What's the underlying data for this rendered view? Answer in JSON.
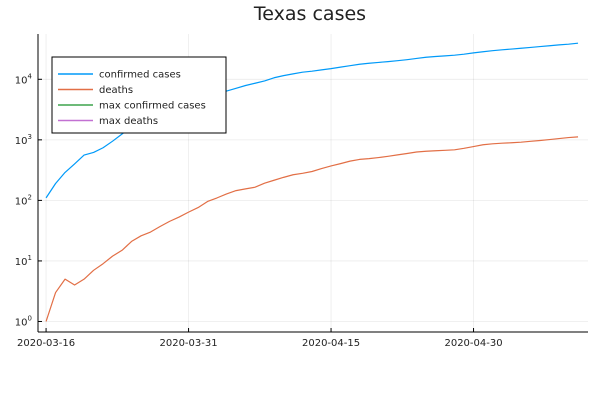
{
  "chart_data": {
    "type": "line",
    "title": "Texas cases",
    "xlabel": "",
    "ylabel": "",
    "y_scale": "log10",
    "x_ticks": [
      "2020-03-16",
      "2020-03-31",
      "2020-04-15",
      "2020-04-30"
    ],
    "y_ticks": [
      {
        "value": 1,
        "base": "10",
        "exp": "0"
      },
      {
        "value": 10,
        "base": "10",
        "exp": "1"
      },
      {
        "value": 100,
        "base": "10",
        "exp": "2"
      },
      {
        "value": 1000,
        "base": "10",
        "exp": "3"
      },
      {
        "value": 10000,
        "base": "10",
        "exp": "4"
      }
    ],
    "xlim": [
      "2020-03-16",
      "2020-05-11"
    ],
    "ylim": [
      0.67,
      56000
    ],
    "grid": true,
    "legend": "top-left",
    "series": [
      {
        "name": "confirmed cases",
        "color": "#009af9",
        "points": [
          [
            "2020-03-16",
            110
          ],
          [
            "2020-03-17",
            190
          ],
          [
            "2020-03-18",
            290
          ],
          [
            "2020-03-19",
            400
          ],
          [
            "2020-03-20",
            560
          ],
          [
            "2020-03-21",
            620
          ],
          [
            "2020-03-22",
            740
          ],
          [
            "2020-03-23",
            950
          ],
          [
            "2020-03-24",
            1250
          ],
          [
            "2020-03-25",
            1650
          ],
          [
            "2020-03-26",
            2200
          ],
          [
            "2020-03-27",
            2900
          ],
          [
            "2020-03-28",
            3300
          ],
          [
            "2020-03-29",
            3700
          ],
          [
            "2020-03-30",
            4100
          ],
          [
            "2020-03-31",
            4500
          ],
          [
            "2020-04-01",
            4900
          ],
          [
            "2020-04-02",
            5300
          ],
          [
            "2020-04-03",
            5800
          ],
          [
            "2020-04-04",
            6400
          ],
          [
            "2020-04-05",
            7100
          ],
          [
            "2020-04-06",
            7900
          ],
          [
            "2020-04-07",
            8600
          ],
          [
            "2020-04-08",
            9400
          ],
          [
            "2020-04-09",
            10600
          ],
          [
            "2020-04-10",
            11500
          ],
          [
            "2020-04-11",
            12300
          ],
          [
            "2020-04-12",
            13100
          ],
          [
            "2020-04-13",
            13600
          ],
          [
            "2020-04-14",
            14300
          ],
          [
            "2020-04-15",
            15000
          ],
          [
            "2020-04-16",
            15900
          ],
          [
            "2020-04-17",
            16800
          ],
          [
            "2020-04-18",
            17700
          ],
          [
            "2020-04-19",
            18400
          ],
          [
            "2020-04-20",
            19000
          ],
          [
            "2020-04-21",
            19600
          ],
          [
            "2020-04-22",
            20300
          ],
          [
            "2020-04-23",
            21100
          ],
          [
            "2020-04-24",
            22100
          ],
          [
            "2020-04-25",
            23100
          ],
          [
            "2020-04-26",
            23800
          ],
          [
            "2020-04-27",
            24400
          ],
          [
            "2020-04-28",
            25000
          ],
          [
            "2020-04-29",
            26000
          ],
          [
            "2020-04-30",
            27300
          ],
          [
            "2020-05-01",
            28500
          ],
          [
            "2020-05-02",
            29700
          ],
          [
            "2020-05-03",
            30700
          ],
          [
            "2020-05-04",
            31600
          ],
          [
            "2020-05-05",
            32600
          ],
          [
            "2020-05-06",
            33600
          ],
          [
            "2020-05-07",
            34700
          ],
          [
            "2020-05-08",
            35800
          ],
          [
            "2020-05-09",
            37000
          ],
          [
            "2020-05-10",
            38000
          ],
          [
            "2020-05-11",
            39500
          ]
        ]
      },
      {
        "name": "deaths",
        "color": "#e26f46",
        "points": [
          [
            "2020-03-16",
            1
          ],
          [
            "2020-03-17",
            3
          ],
          [
            "2020-03-18",
            5
          ],
          [
            "2020-03-19",
            4
          ],
          [
            "2020-03-20",
            5
          ],
          [
            "2020-03-21",
            7
          ],
          [
            "2020-03-22",
            9
          ],
          [
            "2020-03-23",
            12
          ],
          [
            "2020-03-24",
            15
          ],
          [
            "2020-03-25",
            21
          ],
          [
            "2020-03-26",
            26
          ],
          [
            "2020-03-27",
            30
          ],
          [
            "2020-03-28",
            37
          ],
          [
            "2020-03-29",
            45
          ],
          [
            "2020-03-30",
            53
          ],
          [
            "2020-03-31",
            64
          ],
          [
            "2020-04-01",
            76
          ],
          [
            "2020-04-02",
            96
          ],
          [
            "2020-04-03",
            110
          ],
          [
            "2020-04-04",
            128
          ],
          [
            "2020-04-05",
            145
          ],
          [
            "2020-04-06",
            155
          ],
          [
            "2020-04-07",
            165
          ],
          [
            "2020-04-08",
            192
          ],
          [
            "2020-04-09",
            215
          ],
          [
            "2020-04-10",
            240
          ],
          [
            "2020-04-11",
            265
          ],
          [
            "2020-04-12",
            280
          ],
          [
            "2020-04-13",
            300
          ],
          [
            "2020-04-14",
            335
          ],
          [
            "2020-04-15",
            370
          ],
          [
            "2020-04-16",
            405
          ],
          [
            "2020-04-17",
            445
          ],
          [
            "2020-04-18",
            475
          ],
          [
            "2020-04-19",
            490
          ],
          [
            "2020-04-20",
            510
          ],
          [
            "2020-04-21",
            535
          ],
          [
            "2020-04-22",
            565
          ],
          [
            "2020-04-23",
            595
          ],
          [
            "2020-04-24",
            630
          ],
          [
            "2020-04-25",
            648
          ],
          [
            "2020-04-26",
            660
          ],
          [
            "2020-04-27",
            672
          ],
          [
            "2020-04-28",
            685
          ],
          [
            "2020-04-29",
            725
          ],
          [
            "2020-04-30",
            775
          ],
          [
            "2020-05-01",
            830
          ],
          [
            "2020-05-02",
            860
          ],
          [
            "2020-05-03",
            880
          ],
          [
            "2020-05-04",
            895
          ],
          [
            "2020-05-05",
            915
          ],
          [
            "2020-05-06",
            945
          ],
          [
            "2020-05-07",
            975
          ],
          [
            "2020-05-08",
            1010
          ],
          [
            "2020-05-09",
            1050
          ],
          [
            "2020-05-10",
            1090
          ],
          [
            "2020-05-11",
            1120
          ]
        ]
      },
      {
        "name": "max confirmed cases",
        "color": "#3da44d",
        "points": []
      },
      {
        "name": "max deaths",
        "color": "#c271d2",
        "points": []
      }
    ]
  }
}
